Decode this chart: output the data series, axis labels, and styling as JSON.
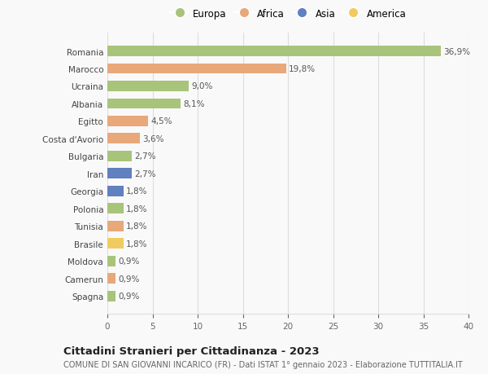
{
  "countries": [
    "Romania",
    "Marocco",
    "Ucraina",
    "Albania",
    "Egitto",
    "Costa d'Avorio",
    "Bulgaria",
    "Iran",
    "Georgia",
    "Polonia",
    "Tunisia",
    "Brasile",
    "Moldova",
    "Camerun",
    "Spagna"
  ],
  "values": [
    36.9,
    19.8,
    9.0,
    8.1,
    4.5,
    3.6,
    2.7,
    2.7,
    1.8,
    1.8,
    1.8,
    1.8,
    0.9,
    0.9,
    0.9
  ],
  "labels": [
    "36,9%",
    "19,8%",
    "9,0%",
    "8,1%",
    "4,5%",
    "3,6%",
    "2,7%",
    "2,7%",
    "1,8%",
    "1,8%",
    "1,8%",
    "1,8%",
    "0,9%",
    "0,9%",
    "0,9%"
  ],
  "continents": [
    "Europa",
    "Africa",
    "Europa",
    "Europa",
    "Africa",
    "Africa",
    "Europa",
    "Asia",
    "Asia",
    "Europa",
    "Africa",
    "America",
    "Europa",
    "Africa",
    "Europa"
  ],
  "colors": {
    "Europa": "#a8c47a",
    "Africa": "#e8a87a",
    "Asia": "#6080bf",
    "America": "#f0cc60"
  },
  "legend_order": [
    "Europa",
    "Africa",
    "Asia",
    "America"
  ],
  "xlim": [
    0,
    40
  ],
  "xticks": [
    0,
    5,
    10,
    15,
    20,
    25,
    30,
    35,
    40
  ],
  "title": "Cittadini Stranieri per Cittadinanza - 2023",
  "subtitle": "COMUNE DI SAN GIOVANNI INCARICO (FR) - Dati ISTAT 1° gennaio 2023 - Elaborazione TUTTITALIA.IT",
  "background_color": "#f9f9f9",
  "bar_height": 0.6,
  "grid_color": "#dddddd",
  "label_fontsize": 7.5,
  "tick_fontsize": 7.5,
  "title_fontsize": 9.5,
  "subtitle_fontsize": 7.0,
  "legend_fontsize": 8.5
}
